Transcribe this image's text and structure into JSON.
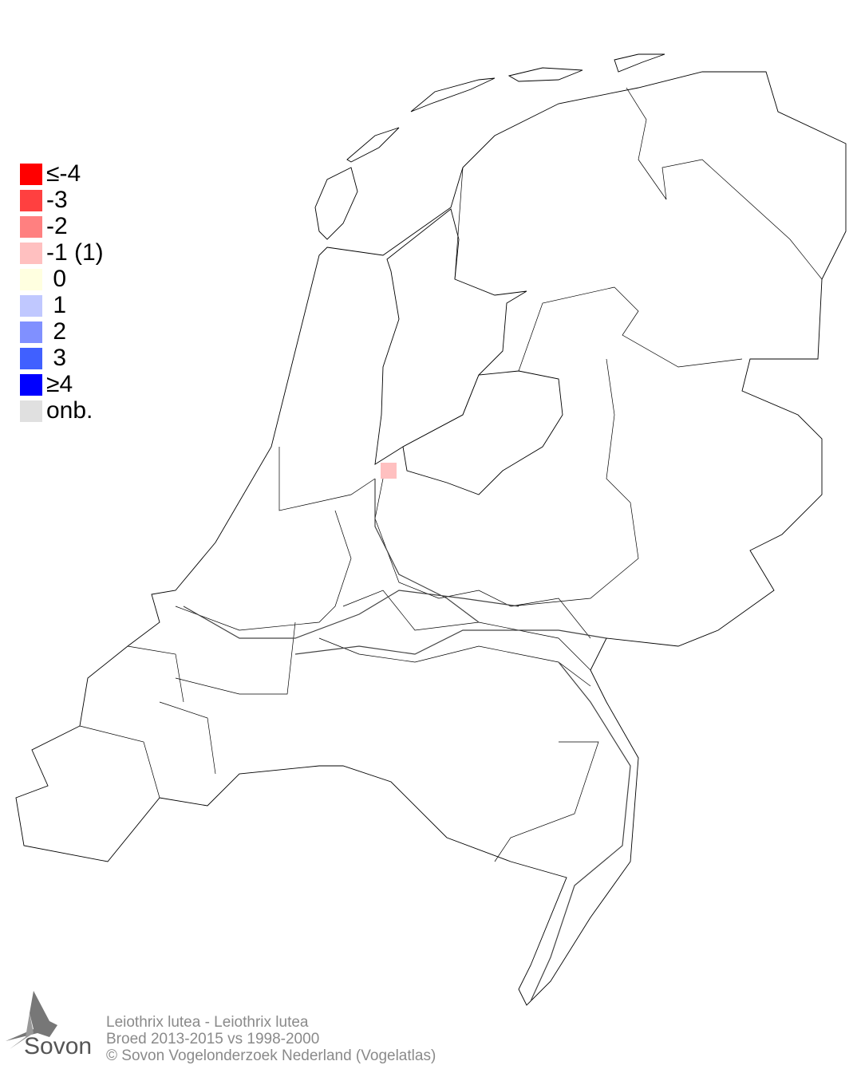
{
  "legend": {
    "items": [
      {
        "label": "≤-4",
        "color": "#ff0000"
      },
      {
        "label": "-3",
        "color": "#ff4040"
      },
      {
        "label": "-2",
        "color": "#ff8080"
      },
      {
        "label": "-1 (1)",
        "color": "#ffc0c0"
      },
      {
        "label": " 0",
        "color": "#ffffe0"
      },
      {
        "label": " 1",
        "color": "#c0c8ff"
      },
      {
        "label": " 2",
        "color": "#8090ff"
      },
      {
        "label": " 3",
        "color": "#4060ff"
      },
      {
        "label": "≥4",
        "color": "#0000ff"
      },
      {
        "label": "onb.",
        "color": "#e0e0e0"
      }
    ]
  },
  "map": {
    "cell_value": "-1",
    "cell_color": "#ffc0c0",
    "outline_color": "#000000"
  },
  "footer": {
    "line1": "Leiothrix lutea - Leiothrix lutea",
    "line2": "Broed 2013-2015 vs 1998-2000",
    "line3": "© Sovon Vogelonderzoek Nederland (Vogelatlas)"
  },
  "logo": {
    "text": "Sovon"
  }
}
